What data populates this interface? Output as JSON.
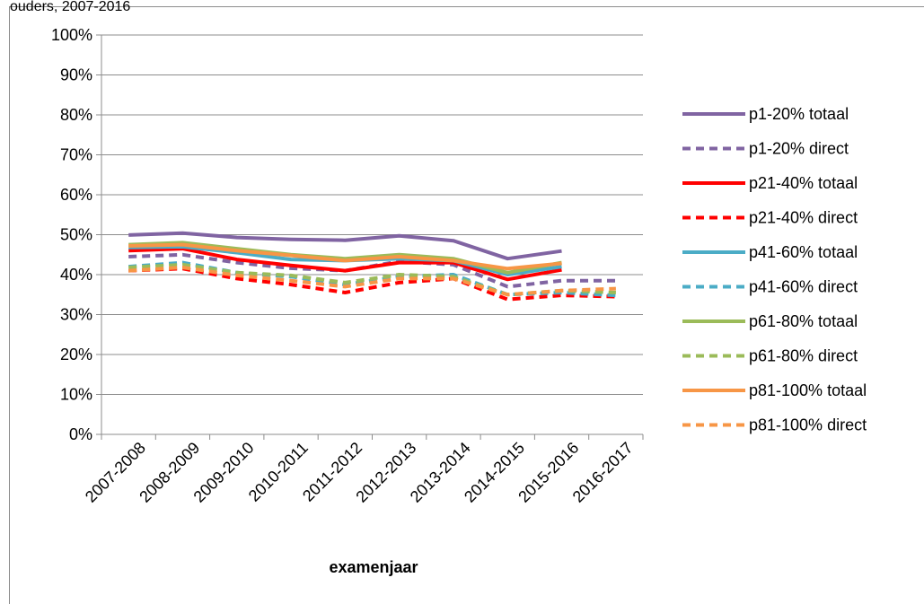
{
  "chart_title_fragment": "ouders, 2007-2016",
  "chart_data": {
    "type": "line",
    "xlabel": "examenjaar",
    "ylabel": "",
    "ylim": [
      0,
      100
    ],
    "y_ticks": [
      "0%",
      "10%",
      "20%",
      "30%",
      "40%",
      "50%",
      "60%",
      "70%",
      "80%",
      "90%",
      "100%"
    ],
    "categories": [
      "2007-2008",
      "2008-2009",
      "2009-2010",
      "2010-2011",
      "2011-2012",
      "2012-2013",
      "2013-2014",
      "2014-2015",
      "2015-2016",
      "2016-2017"
    ],
    "grid": true,
    "legend_position": "right",
    "series": [
      {
        "name": "p1-20% totaal",
        "color": "#8064a2",
        "dash": false,
        "values": [
          49.9,
          50.4,
          49.3,
          48.8,
          48.6,
          49.7,
          48.5,
          44.0,
          45.9,
          null
        ]
      },
      {
        "name": "p1-20% direct",
        "color": "#8064a2",
        "dash": true,
        "values": [
          44.5,
          45.0,
          43.0,
          41.6,
          41.0,
          43.3,
          42.5,
          37.0,
          38.5,
          38.5
        ]
      },
      {
        "name": "p21-40% totaal",
        "color": "#ff0000",
        "dash": false,
        "values": [
          46.0,
          46.5,
          43.8,
          42.3,
          41.0,
          43.0,
          43.0,
          38.8,
          41.2,
          null
        ]
      },
      {
        "name": "p21-40% direct",
        "color": "#ff0000",
        "dash": true,
        "values": [
          41.0,
          41.5,
          39.0,
          37.5,
          35.5,
          38.0,
          39.0,
          33.8,
          34.8,
          34.5
        ]
      },
      {
        "name": "p41-60% totaal",
        "color": "#4bacc6",
        "dash": false,
        "values": [
          46.8,
          47.0,
          45.5,
          43.8,
          43.5,
          44.0,
          43.5,
          40.0,
          42.0,
          null
        ]
      },
      {
        "name": "p41-60% direct",
        "color": "#4bacc6",
        "dash": true,
        "values": [
          42.0,
          43.0,
          40.5,
          39.5,
          37.5,
          39.5,
          40.0,
          35.0,
          35.5,
          34.8
        ]
      },
      {
        "name": "p61-80% totaal",
        "color": "#9bbb59",
        "dash": false,
        "values": [
          47.5,
          48.0,
          46.5,
          45.0,
          44.0,
          45.0,
          44.0,
          40.5,
          43.0,
          null
        ]
      },
      {
        "name": "p61-80% direct",
        "color": "#9bbb59",
        "dash": true,
        "values": [
          41.8,
          42.5,
          40.5,
          39.8,
          38.0,
          40.0,
          39.5,
          35.0,
          36.0,
          35.5
        ]
      },
      {
        "name": "p81-100% totaal",
        "color": "#f79646",
        "dash": false,
        "values": [
          47.2,
          47.5,
          46.0,
          44.8,
          43.5,
          44.5,
          43.5,
          41.5,
          42.8,
          null
        ]
      },
      {
        "name": "p81-100% direct",
        "color": "#f79646",
        "dash": true,
        "values": [
          41.0,
          41.8,
          39.8,
          38.5,
          37.0,
          39.0,
          39.0,
          35.0,
          36.0,
          36.5
        ]
      }
    ]
  }
}
